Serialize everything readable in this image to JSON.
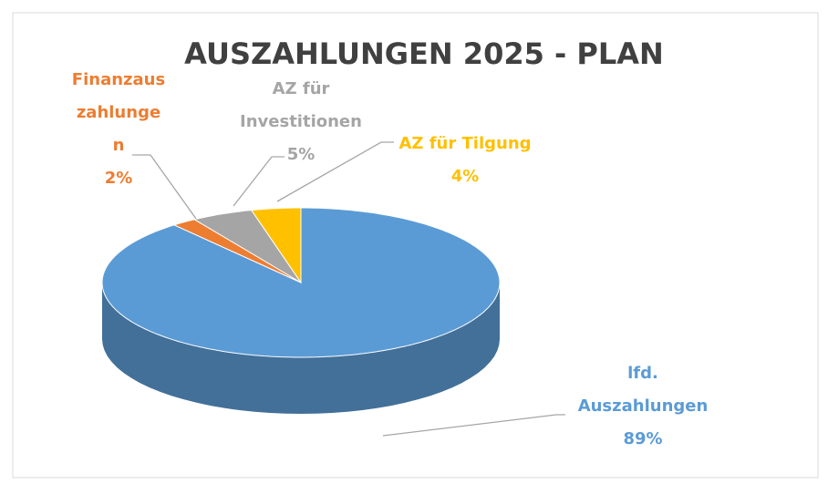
{
  "chart_data": {
    "type": "pie3d",
    "title": "AUSZAHLUNGEN 2025 - PLAN",
    "categories": [
      "lfd. Auszahlungen",
      "Finanzauszahlungen",
      "AZ für Investitionen",
      "AZ für Tilgung"
    ],
    "values": [
      89,
      2,
      5,
      4
    ],
    "value_labels": [
      "89%",
      "2%",
      "5%",
      "4%"
    ],
    "colors": [
      "#5b9bd5",
      "#ed7d31",
      "#a5a5a5",
      "#ffc000"
    ]
  }
}
